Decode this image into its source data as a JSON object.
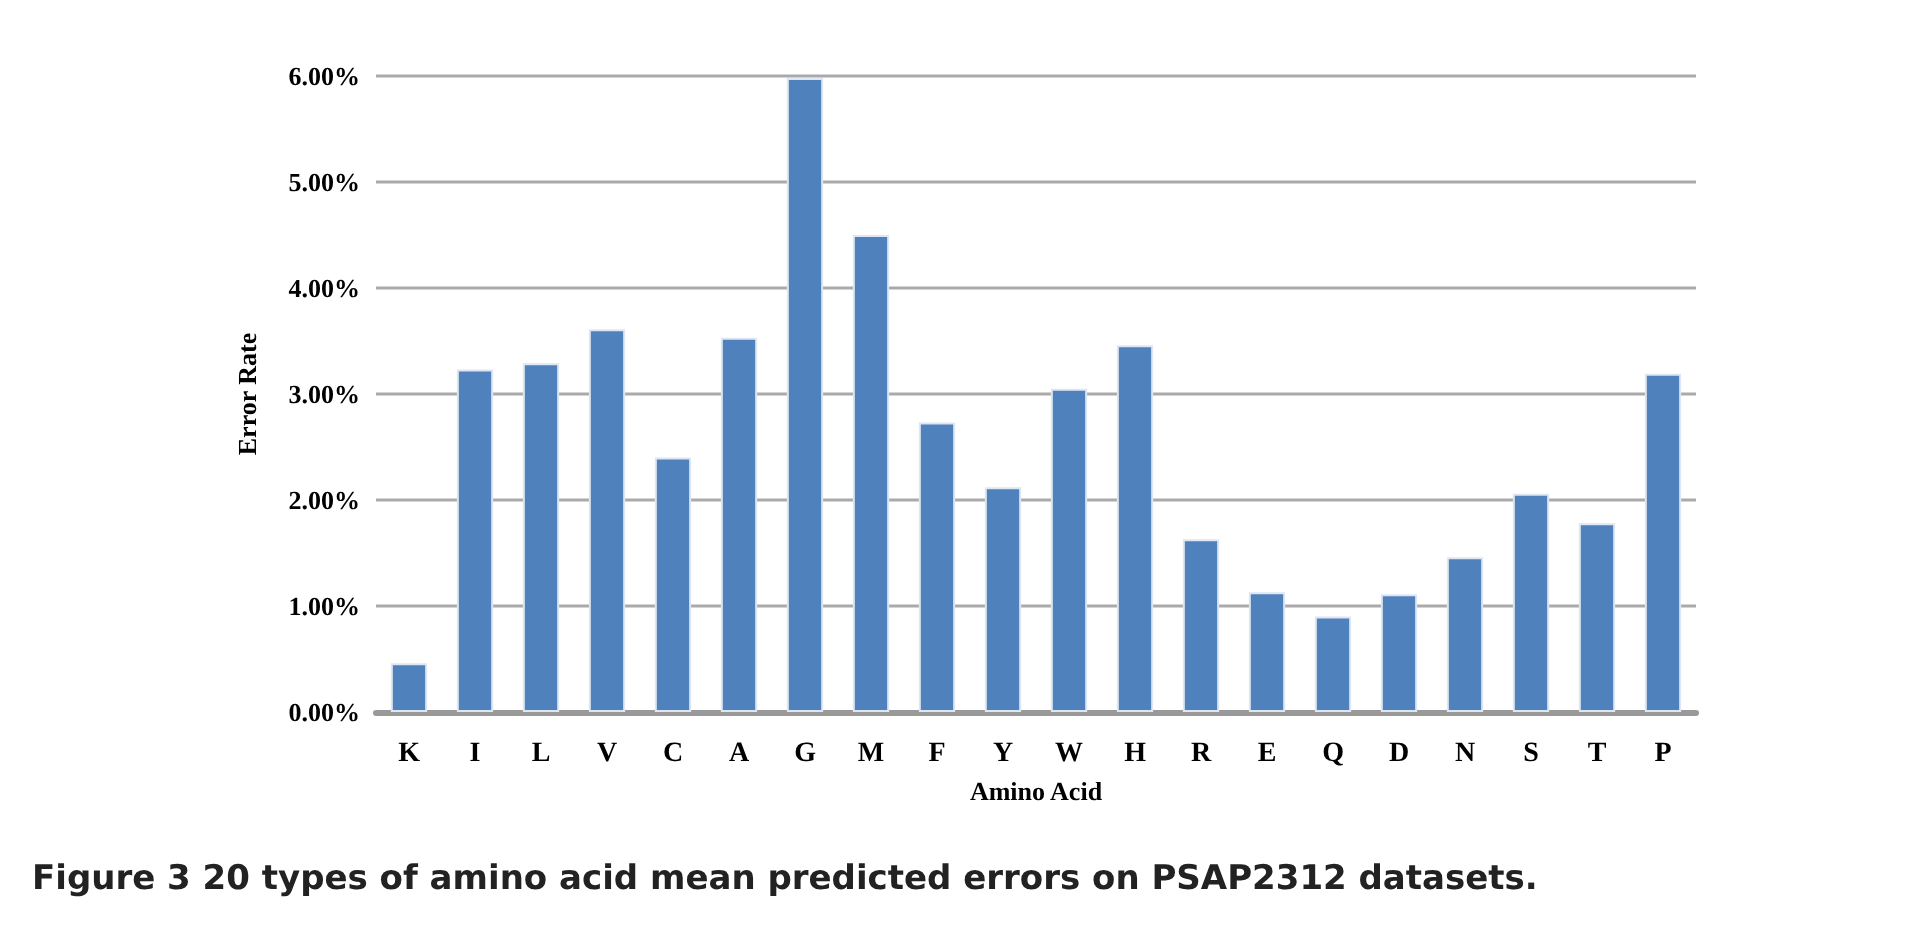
{
  "chart_data": {
    "type": "bar",
    "xlabel": "Amino Acid",
    "ylabel": "Error Rate",
    "annotations": [
      "Figure 3 20 types of amino acid mean predicted errors on PSAP2312 datasets."
    ],
    "categories": [
      "K",
      "I",
      "L",
      "V",
      "C",
      "A",
      "G",
      "M",
      "F",
      "Y",
      "W",
      "H",
      "R",
      "E",
      "Q",
      "D",
      "N",
      "S",
      "T",
      "P"
    ],
    "values": [
      0.46,
      3.23,
      3.29,
      3.61,
      2.4,
      3.53,
      5.98,
      4.5,
      2.73,
      2.12,
      3.05,
      3.46,
      1.63,
      1.13,
      0.9,
      1.11,
      1.46,
      2.06,
      1.78,
      3.19
    ],
    "color": "#4f81bd",
    "ylim": [
      0,
      6
    ],
    "yticks": [
      {
        "value": 0,
        "label": "0.00%"
      },
      {
        "value": 1,
        "label": "1.00%"
      },
      {
        "value": 2,
        "label": "2.00%"
      },
      {
        "value": 3,
        "label": "3.00%"
      },
      {
        "value": 4,
        "label": "4.00%"
      },
      {
        "value": 5,
        "label": "5.00%"
      },
      {
        "value": 6,
        "label": "6.00%"
      }
    ],
    "grid": "y"
  }
}
